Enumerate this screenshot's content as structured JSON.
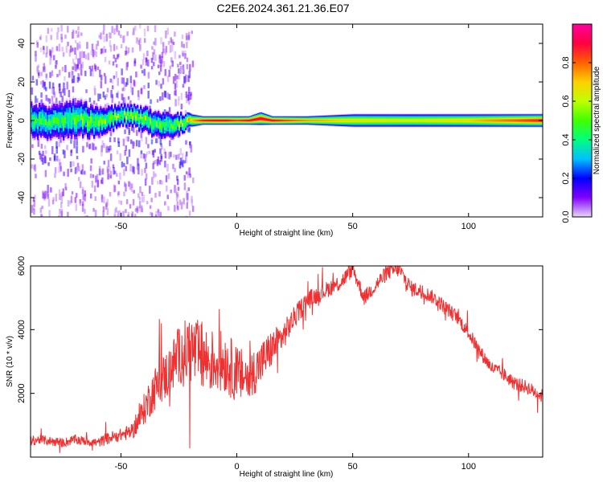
{
  "title": "C2E6.2024.361.21.36.E07",
  "chart_data": [
    {
      "type": "heatmap",
      "title": "C2E6.2024.361.21.36.E07",
      "xlabel": "Height of straight line (km)",
      "ylabel": "Frequency (Hz)",
      "xlim": [
        -89,
        132
      ],
      "ylim": [
        -50,
        50
      ],
      "xticks": [
        -50,
        0,
        50,
        100
      ],
      "yticks": [
        -40,
        -20,
        0,
        20,
        40
      ],
      "colorbar": {
        "label": "Normalized spectral amplitude",
        "range": [
          0,
          1
        ],
        "ticks": [
          0.0,
          0.2,
          0.4,
          0.6,
          0.8
        ],
        "colors": [
          "#e8d8f4",
          "#8000ff",
          "#0000ff",
          "#00c0ff",
          "#00ff80",
          "#40ff00",
          "#c0ff00",
          "#ffd000",
          "#ff6000",
          "#ff0040",
          "#ff00a0"
        ]
      },
      "ridge": {
        "description_free": true,
        "x": [
          -89,
          -80,
          -70,
          -60,
          -50,
          -45,
          -40,
          -35,
          -30,
          -25,
          -20,
          -15,
          -10,
          -5,
          0,
          5,
          10,
          15,
          20,
          30,
          50,
          75,
          100,
          132
        ],
        "center_hz": [
          0,
          -1,
          1,
          -1,
          3,
          2,
          0,
          -2,
          -3,
          -2,
          0,
          0,
          0,
          0,
          0,
          0,
          1,
          0,
          0,
          0,
          0,
          0,
          0,
          0
        ],
        "amplitude": [
          0.45,
          0.45,
          0.48,
          0.5,
          0.52,
          0.55,
          0.55,
          0.5,
          0.5,
          0.55,
          0.7,
          0.88,
          0.9,
          0.9,
          0.85,
          0.9,
          0.92,
          0.9,
          0.85,
          0.75,
          0.68,
          0.65,
          0.7,
          0.88
        ],
        "halfwidth_hz": [
          8,
          8,
          9,
          7,
          5,
          5,
          6,
          6,
          6,
          5,
          3,
          2,
          2,
          2,
          2,
          2,
          3,
          2,
          2,
          2,
          3,
          3,
          3,
          3
        ]
      }
    },
    {
      "type": "line",
      "xlabel": "Height of straight line (km)",
      "ylabel": "SNR (10 * v/v)",
      "xlim": [
        -89,
        132
      ],
      "ylim": [
        0,
        6000
      ],
      "xticks": [
        -50,
        0,
        50,
        100
      ],
      "yticks": [
        2000,
        4000,
        6000
      ],
      "color": "#f03030",
      "x": [
        -89,
        -85,
        -80,
        -75,
        -70,
        -65,
        -60,
        -55,
        -50,
        -45,
        -42,
        -40,
        -38,
        -35,
        -30,
        -25,
        -20,
        -15,
        -10,
        -5,
        0,
        5,
        10,
        15,
        20,
        25,
        30,
        35,
        40,
        45,
        50,
        55,
        60,
        65,
        70,
        75,
        80,
        85,
        90,
        95,
        100,
        105,
        110,
        115,
        120,
        125,
        132
      ],
      "y": [
        500,
        550,
        500,
        450,
        550,
        500,
        450,
        600,
        700,
        800,
        1200,
        1500,
        1800,
        2200,
        2600,
        3200,
        3400,
        3100,
        3000,
        3000,
        2600,
        2500,
        2900,
        3400,
        3800,
        4400,
        4900,
        5100,
        5300,
        5500,
        5900,
        5000,
        5400,
        5800,
        5900,
        5300,
        5200,
        5000,
        4700,
        4400,
        3900,
        3300,
        2800,
        2600,
        2300,
        2200,
        1900
      ],
      "noise": [
        150,
        150,
        150,
        150,
        150,
        150,
        150,
        200,
        200,
        250,
        400,
        500,
        600,
        700,
        800,
        900,
        1100,
        1100,
        1000,
        1000,
        900,
        800,
        700,
        600,
        450,
        350,
        300,
        280,
        260,
        260,
        250,
        250,
        250,
        250,
        250,
        250,
        230,
        220,
        220,
        220,
        220,
        220,
        220,
        220,
        220,
        220,
        220
      ]
    }
  ]
}
